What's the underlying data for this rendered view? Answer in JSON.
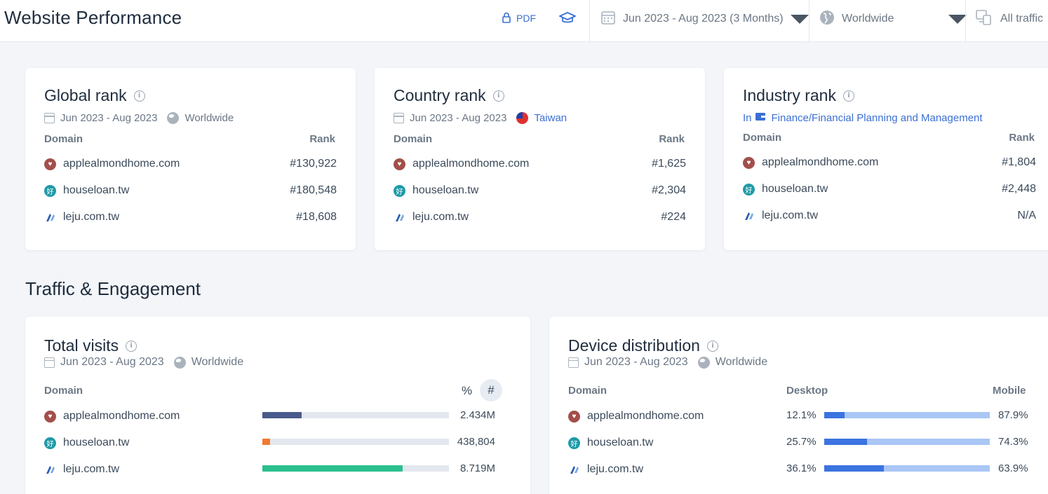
{
  "header": {
    "title": "Website Performance",
    "pdf_label": "PDF",
    "date_range": "Jun 2023 - Aug 2023 (3 Months)",
    "geo": "Worldwide",
    "traffic": "All traffic"
  },
  "colors": {
    "accent": "#3b6fd4",
    "apple_bar": "#4a5a8c",
    "house_bar": "#f07b2e",
    "leju_bar": "#2bc08e",
    "desktop": "#3b73e0",
    "mobile": "#a9c6f5"
  },
  "global_rank": {
    "title": "Global rank",
    "date": "Jun 2023 - Aug 2023",
    "geo": "Worldwide",
    "col_domain": "Domain",
    "col_rank": "Rank",
    "rows": [
      {
        "domain": "applealmondhome.com",
        "rank": "#130,922"
      },
      {
        "domain": "houseloan.tw",
        "rank": "#180,548"
      },
      {
        "domain": "leju.com.tw",
        "rank": "#18,608"
      }
    ]
  },
  "country_rank": {
    "title": "Country rank",
    "date": "Jun 2023 - Aug 2023",
    "country": "Taiwan",
    "col_domain": "Domain",
    "col_rank": "Rank",
    "rows": [
      {
        "domain": "applealmondhome.com",
        "rank": "#1,625"
      },
      {
        "domain": "houseloan.tw",
        "rank": "#2,304"
      },
      {
        "domain": "leju.com.tw",
        "rank": "#224"
      }
    ]
  },
  "industry_rank": {
    "title": "Industry rank",
    "in_label": "In",
    "industry": "Finance/Financial Planning and Management",
    "col_domain": "Domain",
    "col_rank": "Rank",
    "rows": [
      {
        "domain": "applealmondhome.com",
        "rank": "#1,804"
      },
      {
        "domain": "houseloan.tw",
        "rank": "#2,448"
      },
      {
        "domain": "leju.com.tw",
        "rank": "N/A"
      }
    ]
  },
  "section": {
    "traffic_title": "Traffic & Engagement"
  },
  "total_visits": {
    "title": "Total visits",
    "date": "Jun 2023 - Aug 2023",
    "geo": "Worldwide",
    "col_domain": "Domain",
    "pct_toggle": "%",
    "num_toggle": "#",
    "rows": [
      {
        "domain": "applealmondhome.com",
        "value": "2.434M",
        "share": 0.21
      },
      {
        "domain": "houseloan.tw",
        "value": "438,804",
        "share": 0.04
      },
      {
        "domain": "leju.com.tw",
        "value": "8.719M",
        "share": 0.75
      }
    ]
  },
  "device_distribution": {
    "title": "Device distribution",
    "date": "Jun 2023 - Aug 2023",
    "geo": "Worldwide",
    "col_domain": "Domain",
    "col_desktop": "Desktop",
    "col_mobile": "Mobile",
    "rows": [
      {
        "domain": "applealmondhome.com",
        "desktop": "12.1%",
        "mobile": "87.9%",
        "desktop_share": 0.121
      },
      {
        "domain": "houseloan.tw",
        "desktop": "25.7%",
        "mobile": "74.3%",
        "desktop_share": 0.257
      },
      {
        "domain": "leju.com.tw",
        "desktop": "36.1%",
        "mobile": "63.9%",
        "desktop_share": 0.361
      }
    ]
  }
}
